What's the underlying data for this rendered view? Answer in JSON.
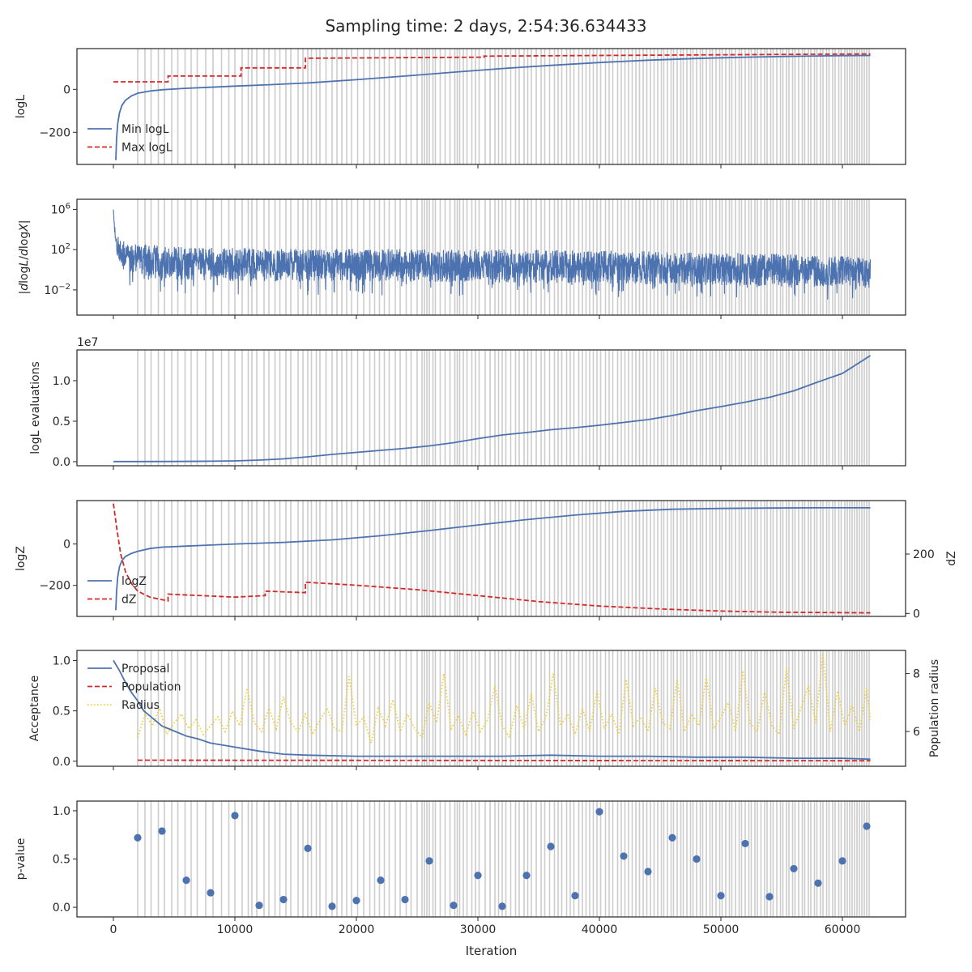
{
  "figure": {
    "title": "Sampling time: 2 days, 2:54:36.634433",
    "xlabel": "Iteration"
  },
  "colors": {
    "blue": "#4c72b0",
    "red": "#d62728",
    "yellow": "#f2cd33",
    "shade": "#cccccc",
    "axis": "#262626"
  },
  "chart_data": [
    {
      "id": "logl",
      "type": "line",
      "ylabel": "logL",
      "xlim": [
        -3000,
        65200
      ],
      "ylim": [
        -350,
        190
      ],
      "xticks": [
        0,
        10000,
        20000,
        30000,
        40000,
        50000,
        60000
      ],
      "yticks": [
        {
          "v": 0,
          "label": "0"
        },
        {
          "v": -200,
          "label": "−200"
        }
      ],
      "legend": {
        "position": "lower-left",
        "entries": [
          "Min logL",
          "Max logL"
        ]
      },
      "series": [
        {
          "name": "Min logL",
          "style": "solid",
          "color": "blue",
          "x": [
            200,
            260,
            350,
            500,
            700,
            1000,
            1500,
            2000,
            3000,
            4000,
            6000,
            8000,
            10000,
            13000,
            16000,
            20000,
            24000,
            28000,
            32000,
            36000,
            40000,
            44000,
            48000,
            52000,
            56000,
            60000,
            62300
          ],
          "y": [
            -330,
            -230,
            -160,
            -110,
            -75,
            -50,
            -30,
            -18,
            -8,
            -2,
            5,
            10,
            15,
            22,
            30,
            45,
            62,
            80,
            97,
            112,
            125,
            136,
            144,
            150,
            154,
            157,
            158
          ]
        },
        {
          "name": "Max logL",
          "style": "dashed",
          "color": "red",
          "x": [
            0,
            4500,
            4500,
            10500,
            10500,
            15800,
            15800,
            30500,
            30500,
            62300
          ],
          "y": [
            35,
            35,
            62,
            62,
            100,
            100,
            145,
            150,
            155,
            165
          ]
        }
      ]
    },
    {
      "id": "dlogl",
      "type": "line",
      "ylabel": "|dlogL/dlogX|",
      "yscale": "log",
      "xlim": [
        -3000,
        65200
      ],
      "ylim_log10": [
        -4.5,
        7.0
      ],
      "xticks": [
        0,
        10000,
        20000,
        30000,
        40000,
        50000,
        60000
      ],
      "yticks": [
        {
          "v": 6,
          "base": "10",
          "exp": "6"
        },
        {
          "v": 2,
          "base": "10",
          "exp": "2"
        },
        {
          "v": -2,
          "base": "10",
          "exp": "−2"
        }
      ],
      "series": [
        {
          "name": "",
          "style": "noisy",
          "color": "blue",
          "x": [
            0,
            100,
            300,
            700,
            1500,
            3000,
            6000,
            12000,
            20000,
            30000,
            40000,
            50000,
            55000,
            60000,
            62300
          ],
          "y_log10_center": [
            6.0,
            4.0,
            2.6,
            1.9,
            1.5,
            1.2,
            1.0,
            0.9,
            0.85,
            0.8,
            0.7,
            0.5,
            0.35,
            0.2,
            0.1
          ],
          "y_log10_spread": [
            0.1,
            0.5,
            1.2,
            1.5,
            1.6,
            1.7,
            1.7,
            1.7,
            1.7,
            1.7,
            1.7,
            1.7,
            1.7,
            1.6,
            1.6
          ]
        }
      ]
    },
    {
      "id": "evals",
      "type": "line",
      "ylabel": "logL evaluations",
      "offset_label": "1e7",
      "xlim": [
        -3000,
        65200
      ],
      "ylim": [
        -500000,
        13800000
      ],
      "xticks": [
        0,
        10000,
        20000,
        30000,
        40000,
        50000,
        60000
      ],
      "yticks": [
        {
          "v": 0,
          "label": "0.0"
        },
        {
          "v": 5000000,
          "label": "0.5"
        },
        {
          "v": 10000000,
          "label": "1.0"
        }
      ],
      "series": [
        {
          "name": "",
          "style": "solid",
          "color": "blue",
          "x": [
            0,
            2000,
            5000,
            8000,
            10000,
            12000,
            14000,
            16000,
            18000,
            20000,
            22000,
            24000,
            26000,
            28000,
            30000,
            32000,
            34000,
            36000,
            38000,
            40000,
            42000,
            44000,
            46000,
            48000,
            50000,
            52000,
            54000,
            56000,
            58000,
            60000,
            62300
          ],
          "y": [
            20000,
            20000,
            30000,
            60000,
            100000,
            200000,
            350000,
            600000,
            900000,
            1150000,
            1400000,
            1650000,
            1950000,
            2350000,
            2850000,
            3300000,
            3600000,
            3950000,
            4200000,
            4500000,
            4850000,
            5200000,
            5700000,
            6300000,
            6800000,
            7350000,
            7950000,
            8750000,
            9850000,
            10900000,
            13100000
          ]
        }
      ]
    },
    {
      "id": "logz",
      "type": "line",
      "ylabel": "logZ",
      "ylabel_right": "dZ",
      "xlim": [
        -3000,
        65200
      ],
      "ylim": [
        -350,
        210
      ],
      "ylim_right": [
        -10,
        380
      ],
      "xticks": [
        0,
        10000,
        20000,
        30000,
        40000,
        50000,
        60000
      ],
      "yticks": [
        {
          "v": 0,
          "label": "0"
        },
        {
          "v": -200,
          "label": "−200"
        }
      ],
      "yticks_right": [
        {
          "v": 200,
          "label": "200"
        },
        {
          "v": 0,
          "label": "0"
        }
      ],
      "legend": {
        "position": "lower-left",
        "entries": [
          "logZ",
          "dZ"
        ]
      },
      "series": [
        {
          "name": "logZ",
          "style": "solid",
          "color": "blue",
          "axis": "left",
          "x": [
            200,
            260,
            350,
            500,
            700,
            1000,
            1500,
            2000,
            3000,
            4000,
            6000,
            8000,
            10000,
            14000,
            18000,
            22000,
            26000,
            30000,
            34000,
            38000,
            42000,
            46000,
            50000,
            54000,
            58000,
            62300
          ],
          "y": [
            -320,
            -230,
            -160,
            -110,
            -80,
            -60,
            -45,
            -35,
            -22,
            -15,
            -10,
            -5,
            0,
            8,
            20,
            40,
            65,
            92,
            118,
            140,
            158,
            168,
            172,
            174,
            175,
            175
          ]
        },
        {
          "name": "dZ",
          "style": "dashed",
          "color": "red",
          "axis": "right",
          "x": [
            0,
            300,
            600,
            1000,
            1500,
            2000,
            3000,
            4500,
            4500,
            10000,
            12500,
            12500,
            15800,
            15800,
            20000,
            25000,
            30000,
            35000,
            40000,
            45000,
            50000,
            55000,
            62300
          ],
          "y": [
            370,
            280,
            200,
            140,
            100,
            75,
            55,
            42,
            65,
            55,
            60,
            75,
            70,
            105,
            95,
            80,
            60,
            40,
            25,
            15,
            8,
            4,
            2
          ]
        }
      ]
    },
    {
      "id": "acceptance",
      "type": "line",
      "ylabel": "Acceptance",
      "ylabel_right": "Population radius",
      "xlim": [
        -3000,
        65200
      ],
      "ylim": [
        -0.05,
        1.1
      ],
      "ylim_right": [
        4.8,
        8.8
      ],
      "xticks": [
        0,
        10000,
        20000,
        30000,
        40000,
        50000,
        60000
      ],
      "yticks": [
        {
          "v": 0,
          "label": "0.0"
        },
        {
          "v": 0.5,
          "label": "0.5"
        },
        {
          "v": 1,
          "label": "1.0"
        }
      ],
      "yticks_right": [
        {
          "v": 6,
          "label": "6"
        },
        {
          "v": 8,
          "label": "8"
        }
      ],
      "legend": {
        "position": "top-left",
        "entries": [
          "Proposal",
          "Population",
          "Radius"
        ]
      },
      "series": [
        {
          "name": "Proposal",
          "style": "solid",
          "color": "blue",
          "axis": "left",
          "x": [
            0,
            500,
            1000,
            1500,
            2000,
            2500,
            3000,
            4000,
            5000,
            6000,
            7000,
            8000,
            9000,
            10000,
            12000,
            14000,
            16000,
            20000,
            24000,
            28000,
            32000,
            36000,
            40000,
            44000,
            48000,
            52000,
            56000,
            60000,
            62300
          ],
          "y": [
            1.0,
            0.9,
            0.78,
            0.68,
            0.6,
            0.5,
            0.45,
            0.35,
            0.3,
            0.25,
            0.22,
            0.18,
            0.16,
            0.14,
            0.1,
            0.07,
            0.06,
            0.05,
            0.05,
            0.05,
            0.05,
            0.06,
            0.05,
            0.05,
            0.04,
            0.04,
            0.03,
            0.03,
            0.02
          ]
        },
        {
          "name": "Population",
          "style": "dashed",
          "color": "red",
          "axis": "left",
          "x": [
            2000,
            62300
          ],
          "y": [
            0.01,
            0.005
          ]
        },
        {
          "name": "Radius",
          "style": "dotted",
          "color": "yellow",
          "axis": "right",
          "x": [
            2000,
            2600,
            3200,
            3800,
            4400,
            5000,
            5600,
            6200,
            6800,
            7400,
            8000,
            8600,
            9200,
            9800,
            10400,
            11000,
            11600,
            12200,
            12800,
            13400,
            14000,
            14600,
            15200,
            15800,
            16400,
            17000,
            17600,
            18200,
            18800,
            19400,
            20000,
            20600,
            21200,
            21800,
            22400,
            23000,
            23600,
            24200,
            24800,
            25400,
            26000,
            26600,
            27200,
            27800,
            28400,
            29000,
            29600,
            30200,
            30800,
            31400,
            32000,
            32600,
            33200,
            33800,
            34400,
            35000,
            35600,
            36200,
            36800,
            37400,
            38000,
            38600,
            39200,
            39800,
            40400,
            41000,
            41600,
            42200,
            42800,
            43400,
            44000,
            44600,
            45200,
            45800,
            46400,
            47000,
            47600,
            48200,
            48800,
            49400,
            50000,
            50600,
            51200,
            51800,
            52400,
            53000,
            53600,
            54200,
            54800,
            55400,
            56000,
            56600,
            57200,
            57800,
            58400,
            59000,
            59600,
            60200,
            60800,
            61400,
            62000,
            62300
          ],
          "y": [
            5.8,
            6.6,
            6.2,
            6.8,
            5.9,
            6.3,
            6.6,
            6.1,
            6.4,
            5.9,
            6.2,
            6.5,
            6.0,
            6.7,
            6.2,
            7.5,
            6.3,
            6.0,
            6.8,
            6.1,
            7.2,
            6.3,
            6.0,
            6.6,
            5.9,
            6.4,
            6.8,
            6.1,
            6.0,
            7.9,
            6.2,
            6.5,
            5.6,
            6.8,
            6.2,
            7.1,
            6.0,
            6.6,
            6.1,
            5.8,
            7.0,
            6.3,
            8.0,
            6.1,
            6.5,
            5.9,
            6.7,
            6.0,
            6.4,
            7.6,
            6.2,
            5.8,
            6.9,
            6.1,
            7.3,
            6.0,
            6.5,
            8.0,
            6.2,
            6.6,
            5.9,
            6.8,
            6.0,
            7.4,
            6.1,
            6.6,
            5.9,
            7.8,
            6.2,
            6.5,
            6.0,
            7.5,
            6.3,
            6.1,
            7.8,
            6.0,
            6.6,
            6.2,
            7.9,
            6.1,
            6.5,
            7.0,
            6.0,
            8.1,
            6.3,
            6.0,
            7.4,
            6.2,
            5.9,
            8.2,
            6.1,
            6.8,
            7.6,
            6.3,
            8.7,
            6.0,
            7.4,
            6.2,
            6.9,
            6.0,
            7.5,
            6.4
          ]
        }
      ]
    },
    {
      "id": "pvalue",
      "type": "scatter",
      "ylabel": "p-value",
      "xlim": [
        -3000,
        65200
      ],
      "ylim": [
        -0.1,
        1.1
      ],
      "xticks": [
        0,
        10000,
        20000,
        30000,
        40000,
        50000,
        60000
      ],
      "yticks": [
        {
          "v": 0,
          "label": "0.0"
        },
        {
          "v": 0.5,
          "label": "0.5"
        },
        {
          "v": 1,
          "label": "1.0"
        }
      ],
      "series": [
        {
          "name": "",
          "style": "marker",
          "color": "blue",
          "x": [
            2000,
            4000,
            6000,
            8000,
            10000,
            12000,
            14000,
            16000,
            18000,
            20000,
            22000,
            24000,
            26000,
            28000,
            30000,
            32000,
            34000,
            36000,
            38000,
            40000,
            42000,
            44000,
            46000,
            48000,
            50000,
            52000,
            54000,
            56000,
            58000,
            60000,
            62000
          ],
          "y": [
            0.72,
            0.79,
            0.28,
            0.15,
            0.95,
            0.02,
            0.08,
            0.61,
            0.01,
            0.07,
            0.28,
            0.08,
            0.48,
            0.02,
            0.33,
            0.01,
            0.33,
            0.63,
            0.12,
            0.99,
            0.53,
            0.37,
            0.72,
            0.5,
            0.12,
            0.66,
            0.11,
            0.4,
            0.25,
            0.48,
            0.84
          ]
        }
      ]
    }
  ],
  "shaded_iterations": [
    2000,
    2600,
    3100,
    3700,
    4200,
    4800,
    5300,
    5900,
    6400,
    6900,
    7600,
    8200,
    8900,
    9500,
    10000,
    10600,
    11100,
    11400,
    11800,
    12400,
    12800,
    13300,
    13700,
    14200,
    14600,
    15200,
    15600,
    16000,
    16300,
    16700,
    17000,
    17500,
    18000,
    18400,
    18800,
    19200,
    19600,
    20100,
    20600,
    21100,
    21500,
    21900,
    22300,
    22700,
    23200,
    23600,
    24100,
    24500,
    25000,
    25400,
    25600,
    25800,
    26000,
    26300,
    26500,
    26900,
    27300,
    27700,
    28100,
    28300,
    28500,
    28800,
    29100,
    29500,
    29800,
    30100,
    30600,
    31000,
    31400,
    31700,
    32000,
    32300,
    32700,
    33100,
    33400,
    33800,
    34100,
    34400,
    34800,
    35200,
    35500,
    35900,
    36300,
    36600,
    36900,
    37300,
    37600,
    37900,
    38300,
    38600,
    38900,
    39200,
    39500,
    39800,
    40100,
    40500,
    40800,
    41100,
    41500,
    41800,
    42100,
    42400,
    42700,
    43000,
    43300,
    43600,
    43900,
    44200,
    44500,
    44800,
    45100,
    45300,
    45600,
    45900,
    46100,
    46400,
    46700,
    46900,
    47200,
    47500,
    47700,
    48000,
    48300,
    48500,
    48800,
    49100,
    49300,
    49600,
    49900,
    50100,
    50400,
    50700,
    50900,
    51200,
    51500,
    51700,
    52000,
    52300,
    52500,
    52800,
    53000,
    53300,
    53600,
    53800,
    54100,
    54300,
    54600,
    54900,
    55100,
    55400,
    55600,
    55900,
    56100,
    56400,
    56700,
    56900,
    57200,
    57400,
    57700,
    57900,
    58200,
    58400,
    58700,
    58900,
    59200,
    59400,
    59700,
    59900,
    60200,
    60400,
    60600,
    60800,
    61000,
    61200,
    61400,
    61600,
    61800,
    62000,
    62200
  ]
}
